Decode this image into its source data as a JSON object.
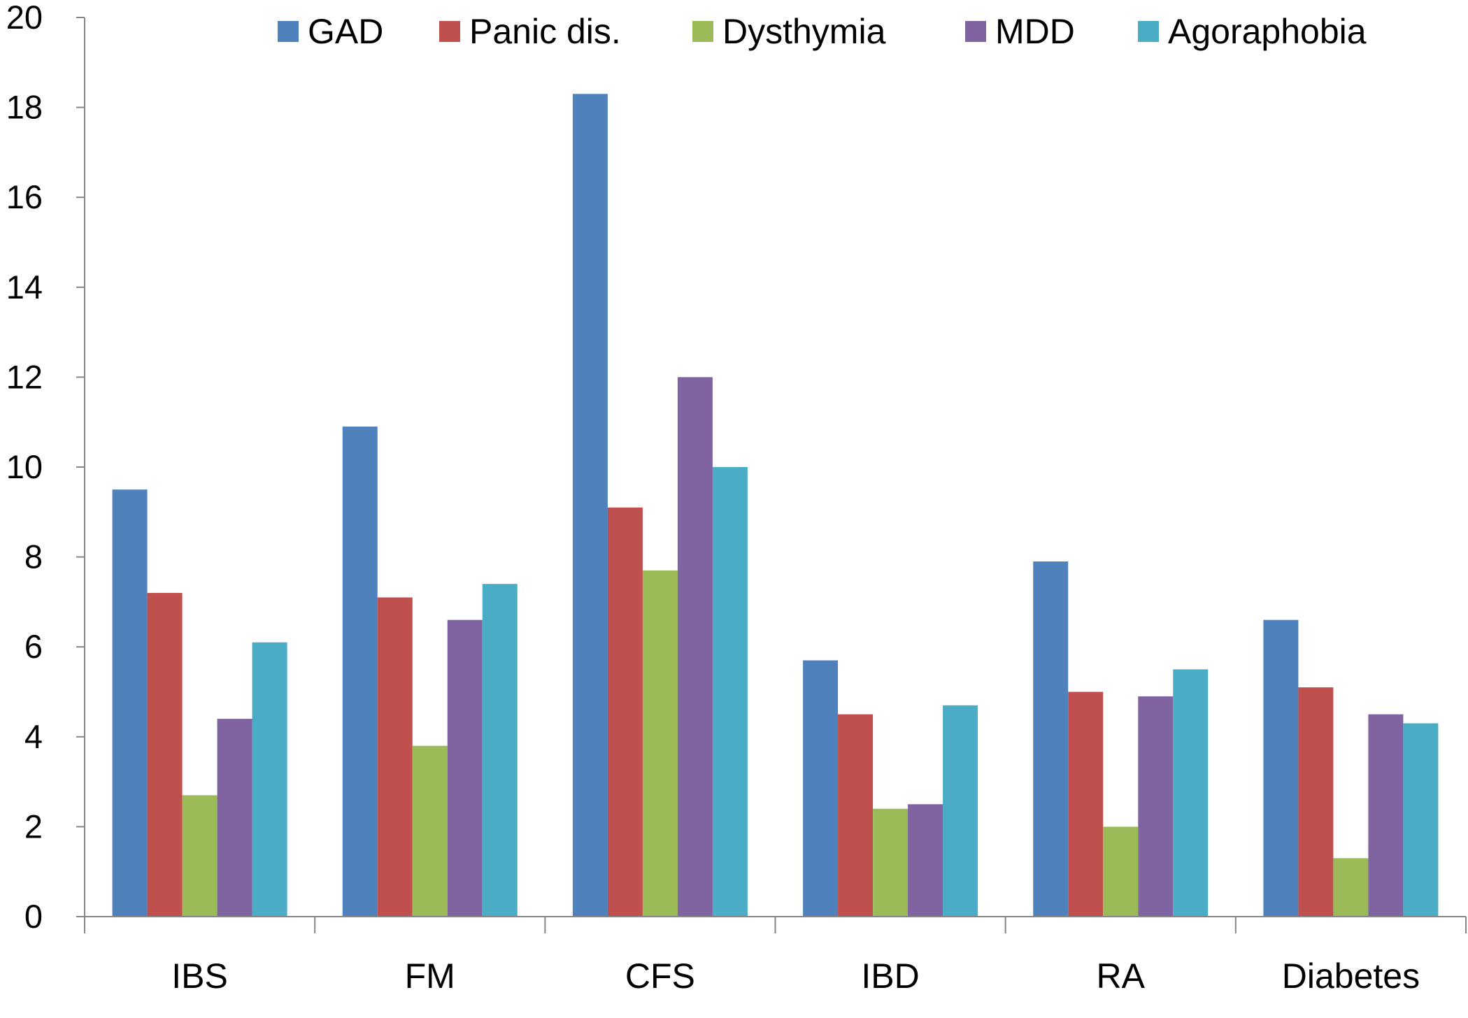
{
  "chart_data": {
    "type": "bar",
    "title": "",
    "xlabel": "",
    "ylabel": "",
    "ylim": [
      0,
      20
    ],
    "yticks": [
      0,
      2,
      4,
      6,
      8,
      10,
      12,
      14,
      16,
      18,
      20
    ],
    "grid": false,
    "legend_position": "top",
    "categories": [
      "IBS",
      "FM",
      "CFS",
      "IBD",
      "RA",
      "Diabetes"
    ],
    "series": [
      {
        "name": "GAD",
        "color": "#4F81BD",
        "values": [
          9.5,
          10.9,
          18.3,
          5.7,
          7.9,
          6.6
        ]
      },
      {
        "name": "Panic dis.",
        "color": "#C0504D",
        "values": [
          7.2,
          7.1,
          9.1,
          4.5,
          5.0,
          5.1
        ]
      },
      {
        "name": "Dysthymia",
        "color": "#9BBB59",
        "values": [
          2.7,
          3.8,
          7.7,
          2.4,
          2.0,
          1.3
        ]
      },
      {
        "name": "MDD",
        "color": "#8064A2",
        "values": [
          4.4,
          6.6,
          12.0,
          2.5,
          4.9,
          4.5
        ]
      },
      {
        "name": "Agoraphobia",
        "color": "#4BACC6",
        "values": [
          6.1,
          7.4,
          10.0,
          4.7,
          5.5,
          4.3
        ]
      }
    ]
  }
}
